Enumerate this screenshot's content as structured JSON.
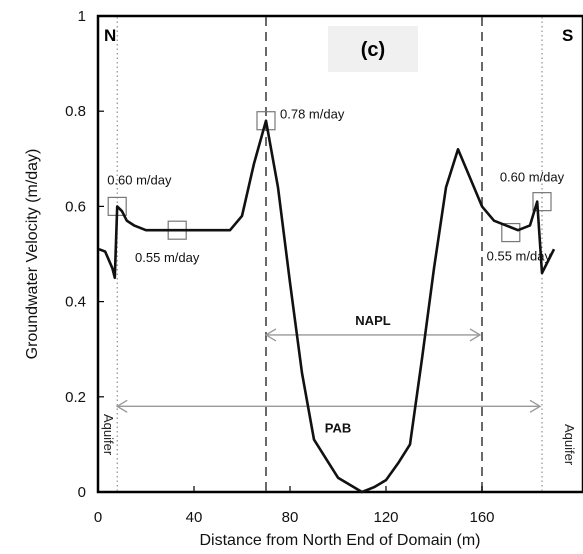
{
  "chart_data": {
    "type": "line",
    "title": "",
    "panel_label": "(c)",
    "xlabel": "Distance from North End of Domain (m)",
    "ylabel": "Groundwater Velocity (m/day)",
    "xlim": [
      0,
      185
    ],
    "ylim": [
      0,
      1
    ],
    "x_ticks": [
      "0",
      "40",
      "80",
      "120",
      "160"
    ],
    "x_tick_values": [
      0,
      40,
      80,
      120,
      160
    ],
    "y_ticks": [
      "0",
      "0.2",
      "0.4",
      "0.6",
      "0.8",
      "1"
    ],
    "y_tick_values": [
      0,
      0.2,
      0.4,
      0.6,
      0.8,
      1.0
    ],
    "grid": false,
    "series": [
      {
        "x": [
          0,
          3,
          6,
          7,
          8,
          10,
          12,
          15,
          20,
          25,
          30,
          35,
          40,
          45,
          50,
          55,
          60,
          65,
          70,
          75,
          80,
          85,
          90,
          95,
          100,
          105,
          110,
          115,
          120,
          125,
          130,
          135,
          140,
          145,
          150,
          155,
          160,
          165,
          170,
          175,
          180,
          183,
          185,
          190
        ],
        "y": [
          0.51,
          0.505,
          0.47,
          0.45,
          0.6,
          0.59,
          0.57,
          0.56,
          0.55,
          0.55,
          0.55,
          0.55,
          0.55,
          0.55,
          0.55,
          0.55,
          0.58,
          0.69,
          0.78,
          0.64,
          0.44,
          0.25,
          0.11,
          0.07,
          0.03,
          0.015,
          0.0,
          0.01,
          0.025,
          0.06,
          0.1,
          0.28,
          0.47,
          0.64,
          0.72,
          0.66,
          0.6,
          0.57,
          0.56,
          0.55,
          0.56,
          0.61,
          0.46,
          0.51
        ]
      }
    ],
    "edge_labels": {
      "north": "N",
      "south": "S"
    },
    "vertical_lines": [
      70,
      160
    ],
    "aquifer_lines": [
      8,
      185
    ],
    "aquifer_label": "Aquifer",
    "spans": [
      {
        "label": "NAPL",
        "from": 70,
        "to": 160,
        "y": 0.33
      },
      {
        "label": "PAB",
        "from": 8,
        "to": 185,
        "y": 0.18
      }
    ],
    "annotations": [
      {
        "text": "0.78 m/day",
        "x": 70,
        "y": 0.78
      },
      {
        "text": "0.60 m/day",
        "x": 8,
        "y": 0.6
      },
      {
        "text": "0.55 m/day",
        "x": 33,
        "y": 0.55
      },
      {
        "text": "0.60 m/day",
        "x": 185,
        "y": 0.61
      },
      {
        "text": "0.55 m/day",
        "x": 172,
        "y": 0.545
      }
    ]
  }
}
